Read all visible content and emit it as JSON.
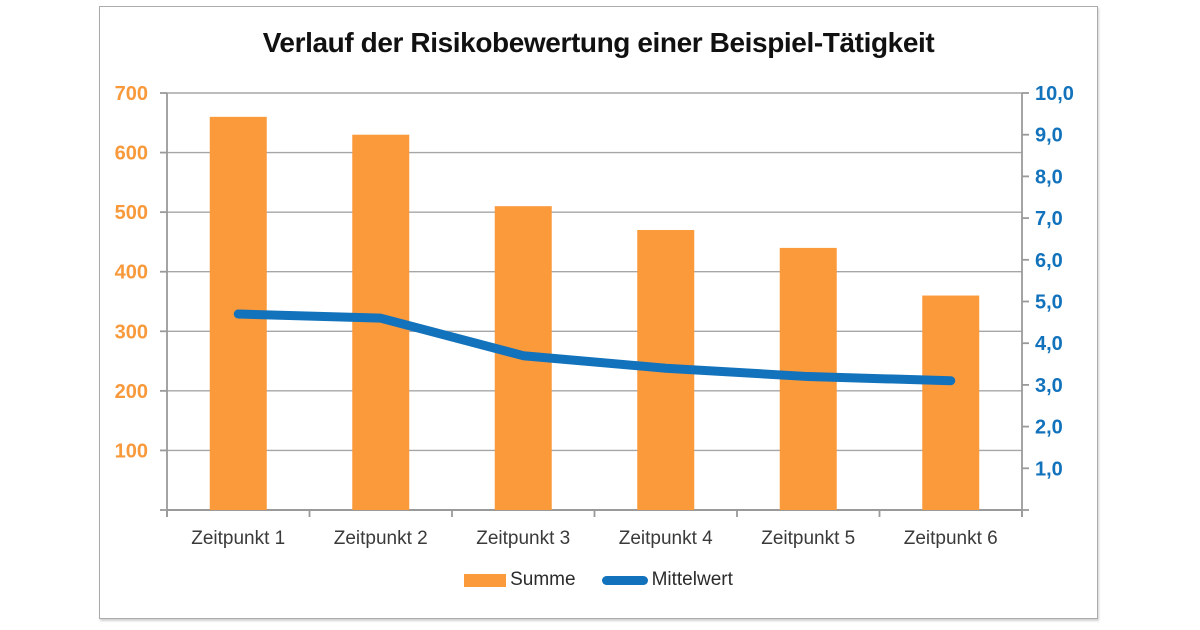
{
  "chart_data": {
    "type": "bar+line",
    "title": "Verlauf der Risikobewertung einer Beispiel-Tätigkeit",
    "categories": [
      "Zeitpunkt 1",
      "Zeitpunkt 2",
      "Zeitpunkt 3",
      "Zeitpunkt 4",
      "Zeitpunkt 5",
      "Zeitpunkt 6"
    ],
    "series": [
      {
        "name": "Summe",
        "type": "bar",
        "axis": "left",
        "color": "#fb9a3a",
        "values": [
          660,
          630,
          510,
          470,
          440,
          360
        ]
      },
      {
        "name": "Mittelwert",
        "type": "line",
        "axis": "right",
        "color": "#1272bc",
        "values": [
          4.7,
          4.6,
          3.7,
          3.4,
          3.2,
          3.1
        ]
      }
    ],
    "left_axis": {
      "min": 0,
      "max": 700,
      "tick_step": 100,
      "tick_labels": [
        "700",
        "600",
        "500",
        "400",
        "300",
        "200",
        "100"
      ],
      "label_color": "#f8993b"
    },
    "right_axis": {
      "min": 0,
      "max": 10,
      "tick_step": 1,
      "tick_labels": [
        "10,0",
        "9,0",
        "8,0",
        "7,0",
        "6,0",
        "5,0",
        "4,0",
        "3,0",
        "2,0",
        "1,0"
      ],
      "label_color": "#1272bc"
    },
    "grid": true,
    "gridline_color": "#a6a6a6",
    "axis_line_color": "#9a9a9a",
    "legend_position": "bottom"
  },
  "legend": {
    "summe_label": "Summe",
    "mittelwert_label": "Mittelwert"
  }
}
